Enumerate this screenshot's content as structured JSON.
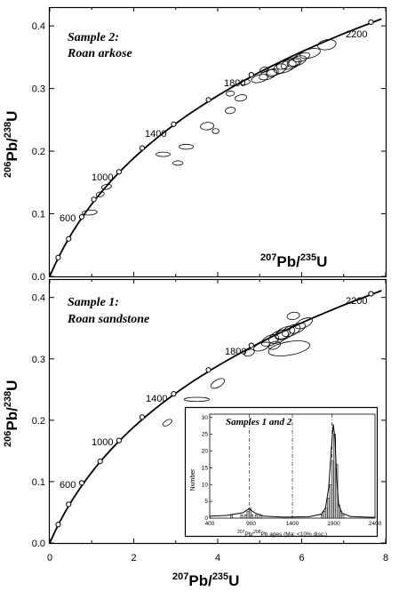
{
  "chart_data": [
    {
      "type": "scatter",
      "title": "Sample 2:",
      "subtitle": "Roan arkose",
      "xlabel": "207Pb/235U",
      "ylabel": "206Pb/238U",
      "xlim": [
        0,
        8
      ],
      "ylim": [
        0,
        0.43
      ],
      "y_ticks": [
        "0.0",
        "0.1",
        "0.2",
        "0.3",
        "0.4"
      ],
      "concordia_age_labels": [
        "600",
        "1000",
        "1400",
        "1800",
        "2200"
      ],
      "concordia_points": [
        [
          0.2,
          0.03
        ],
        [
          0.45,
          0.06
        ],
        [
          0.76,
          0.095
        ],
        [
          1.05,
          0.123
        ],
        [
          1.65,
          0.167
        ],
        [
          2.2,
          0.205
        ],
        [
          2.95,
          0.243
        ],
        [
          3.78,
          0.282
        ],
        [
          4.8,
          0.322
        ],
        [
          7.65,
          0.406
        ]
      ],
      "ellipses": [
        {
          "x": 0.95,
          "y": 0.102,
          "rx": 0.18,
          "ry": 0.004,
          "rot": -5
        },
        {
          "x": 1.2,
          "y": 0.131,
          "rx": 0.1,
          "ry": 0.004,
          "rot": -15
        },
        {
          "x": 1.35,
          "y": 0.143,
          "rx": 0.12,
          "ry": 0.004,
          "rot": -10
        },
        {
          "x": 2.7,
          "y": 0.195,
          "rx": 0.17,
          "ry": 0.0035,
          "rot": 0
        },
        {
          "x": 3.05,
          "y": 0.181,
          "rx": 0.12,
          "ry": 0.0035,
          "rot": 0
        },
        {
          "x": 3.25,
          "y": 0.207,
          "rx": 0.17,
          "ry": 0.004,
          "rot": 0
        },
        {
          "x": 3.75,
          "y": 0.24,
          "rx": 0.16,
          "ry": 0.006,
          "rot": -5
        },
        {
          "x": 3.95,
          "y": 0.232,
          "rx": 0.08,
          "ry": 0.004,
          "rot": 0
        },
        {
          "x": 4.3,
          "y": 0.265,
          "rx": 0.12,
          "ry": 0.005,
          "rot": -10
        },
        {
          "x": 4.55,
          "y": 0.285,
          "rx": 0.14,
          "ry": 0.005,
          "rot": -10
        },
        {
          "x": 4.3,
          "y": 0.292,
          "rx": 0.1,
          "ry": 0.004,
          "rot": -5
        },
        {
          "x": 4.65,
          "y": 0.31,
          "rx": 0.12,
          "ry": 0.004,
          "rot": -10
        },
        {
          "x": 5.0,
          "y": 0.316,
          "rx": 0.2,
          "ry": 0.006,
          "rot": -15
        },
        {
          "x": 5.2,
          "y": 0.322,
          "rx": 0.22,
          "ry": 0.007,
          "rot": -20
        },
        {
          "x": 5.4,
          "y": 0.33,
          "rx": 0.25,
          "ry": 0.008,
          "rot": -20
        },
        {
          "x": 5.6,
          "y": 0.335,
          "rx": 0.28,
          "ry": 0.009,
          "rot": -20
        },
        {
          "x": 5.75,
          "y": 0.34,
          "rx": 0.25,
          "ry": 0.008,
          "rot": -20
        },
        {
          "x": 5.9,
          "y": 0.344,
          "rx": 0.22,
          "ry": 0.007,
          "rot": -20
        },
        {
          "x": 6.0,
          "y": 0.35,
          "rx": 0.2,
          "ry": 0.006,
          "rot": -20
        },
        {
          "x": 6.2,
          "y": 0.356,
          "rx": 0.25,
          "ry": 0.007,
          "rot": -15
        },
        {
          "x": 6.6,
          "y": 0.37,
          "rx": 0.22,
          "ry": 0.008,
          "rot": -10
        },
        {
          "x": 5.3,
          "y": 0.325,
          "rx": 0.15,
          "ry": 0.006,
          "rot": -20
        },
        {
          "x": 5.55,
          "y": 0.337,
          "rx": 0.15,
          "ry": 0.006,
          "rot": -20
        },
        {
          "x": 5.8,
          "y": 0.341,
          "rx": 0.15,
          "ry": 0.006,
          "rot": -20
        },
        {
          "x": 5.1,
          "y": 0.33,
          "rx": 0.1,
          "ry": 0.004,
          "rot": -20
        }
      ]
    },
    {
      "type": "scatter",
      "title": "Sample 1:",
      "subtitle": "Roan sandstone",
      "xlabel": "207Pb/235U",
      "ylabel": "206Pb/238U",
      "xlim": [
        0,
        8
      ],
      "ylim": [
        0,
        0.43
      ],
      "x_ticks": [
        "0",
        "2",
        "4",
        "6",
        "8"
      ],
      "y_ticks": [
        "0.0",
        "0.1",
        "0.2",
        "0.3",
        "0.4"
      ],
      "concordia_age_labels": [
        "600",
        "1000",
        "1400",
        "1800",
        "2200"
      ],
      "concordia_points": [
        [
          0.2,
          0.03
        ],
        [
          0.45,
          0.063
        ],
        [
          0.76,
          0.098
        ],
        [
          1.2,
          0.133
        ],
        [
          1.65,
          0.167
        ],
        [
          2.2,
          0.205
        ],
        [
          2.95,
          0.243
        ],
        [
          3.78,
          0.282
        ],
        [
          4.8,
          0.322
        ],
        [
          7.65,
          0.406
        ]
      ],
      "ellipses": [
        {
          "x": 2.8,
          "y": 0.196,
          "rx": 0.12,
          "ry": 0.004,
          "rot": -30
        },
        {
          "x": 3.5,
          "y": 0.234,
          "rx": 0.3,
          "ry": 0.0035,
          "rot": 0
        },
        {
          "x": 4.0,
          "y": 0.26,
          "rx": 0.18,
          "ry": 0.006,
          "rot": -30
        },
        {
          "x": 4.75,
          "y": 0.31,
          "rx": 0.13,
          "ry": 0.005,
          "rot": -20
        },
        {
          "x": 5.05,
          "y": 0.32,
          "rx": 0.2,
          "ry": 0.006,
          "rot": -20
        },
        {
          "x": 5.25,
          "y": 0.33,
          "rx": 0.22,
          "ry": 0.008,
          "rot": -25
        },
        {
          "x": 5.45,
          "y": 0.336,
          "rx": 0.25,
          "ry": 0.009,
          "rot": -25
        },
        {
          "x": 5.6,
          "y": 0.342,
          "rx": 0.25,
          "ry": 0.009,
          "rot": -25
        },
        {
          "x": 5.75,
          "y": 0.346,
          "rx": 0.23,
          "ry": 0.008,
          "rot": -25
        },
        {
          "x": 5.9,
          "y": 0.35,
          "rx": 0.2,
          "ry": 0.007,
          "rot": -25
        },
        {
          "x": 6.05,
          "y": 0.358,
          "rx": 0.22,
          "ry": 0.007,
          "rot": -25
        },
        {
          "x": 5.7,
          "y": 0.317,
          "rx": 0.5,
          "ry": 0.011,
          "rot": -10
        },
        {
          "x": 5.8,
          "y": 0.37,
          "rx": 0.15,
          "ry": 0.006,
          "rot": -10
        },
        {
          "x": 5.35,
          "y": 0.322,
          "rx": 0.15,
          "ry": 0.006,
          "rot": -20
        },
        {
          "x": 5.55,
          "y": 0.34,
          "rx": 0.18,
          "ry": 0.007,
          "rot": -20
        }
      ]
    },
    {
      "type": "bar",
      "title": "Samples 1 and 2",
      "xlabel": "207Pb/206Pb ages (Ma; <10% disc.)",
      "ylabel": "Number",
      "xlim": [
        400,
        2400
      ],
      "ylim": [
        0,
        31
      ],
      "x_ticks": [
        "400",
        "900",
        "1400",
        "1900",
        "2400"
      ],
      "y_ticks": [
        "0",
        "5",
        "10",
        "15",
        "20",
        "25",
        "30"
      ],
      "bin_width_ma": 25,
      "bins": [
        {
          "start": 650,
          "count": 1
        },
        {
          "start": 775,
          "count": 1
        },
        {
          "start": 825,
          "count": 1
        },
        {
          "start": 850,
          "count": 2
        },
        {
          "start": 875,
          "count": 3
        },
        {
          "start": 900,
          "count": 1
        },
        {
          "start": 950,
          "count": 1
        },
        {
          "start": 1000,
          "count": 1
        },
        {
          "start": 1750,
          "count": 1
        },
        {
          "start": 1775,
          "count": 2
        },
        {
          "start": 1800,
          "count": 3
        },
        {
          "start": 1825,
          "count": 6
        },
        {
          "start": 1850,
          "count": 10
        },
        {
          "start": 1875,
          "count": 17
        },
        {
          "start": 1900,
          "count": 25
        },
        {
          "start": 1925,
          "count": 16
        },
        {
          "start": 1950,
          "count": 4
        },
        {
          "start": 1975,
          "count": 2
        },
        {
          "start": 2000,
          "count": 1
        }
      ],
      "probability_curve": [
        [
          400,
          0.6
        ],
        [
          600,
          0.8
        ],
        [
          700,
          1.2
        ],
        [
          800,
          1.6
        ],
        [
          875,
          2.8
        ],
        [
          950,
          1.5
        ],
        [
          1050,
          0.6
        ],
        [
          1300,
          0.3
        ],
        [
          1600,
          0.4
        ],
        [
          1750,
          1.2
        ],
        [
          1800,
          3
        ],
        [
          1840,
          9
        ],
        [
          1870,
          20
        ],
        [
          1895,
          28
        ],
        [
          1915,
          24
        ],
        [
          1935,
          12
        ],
        [
          1960,
          4
        ],
        [
          2000,
          1.5
        ],
        [
          2100,
          0.5
        ],
        [
          2400,
          0.2
        ]
      ],
      "reference_lines": [
        880,
        1400,
        1880
      ]
    }
  ]
}
